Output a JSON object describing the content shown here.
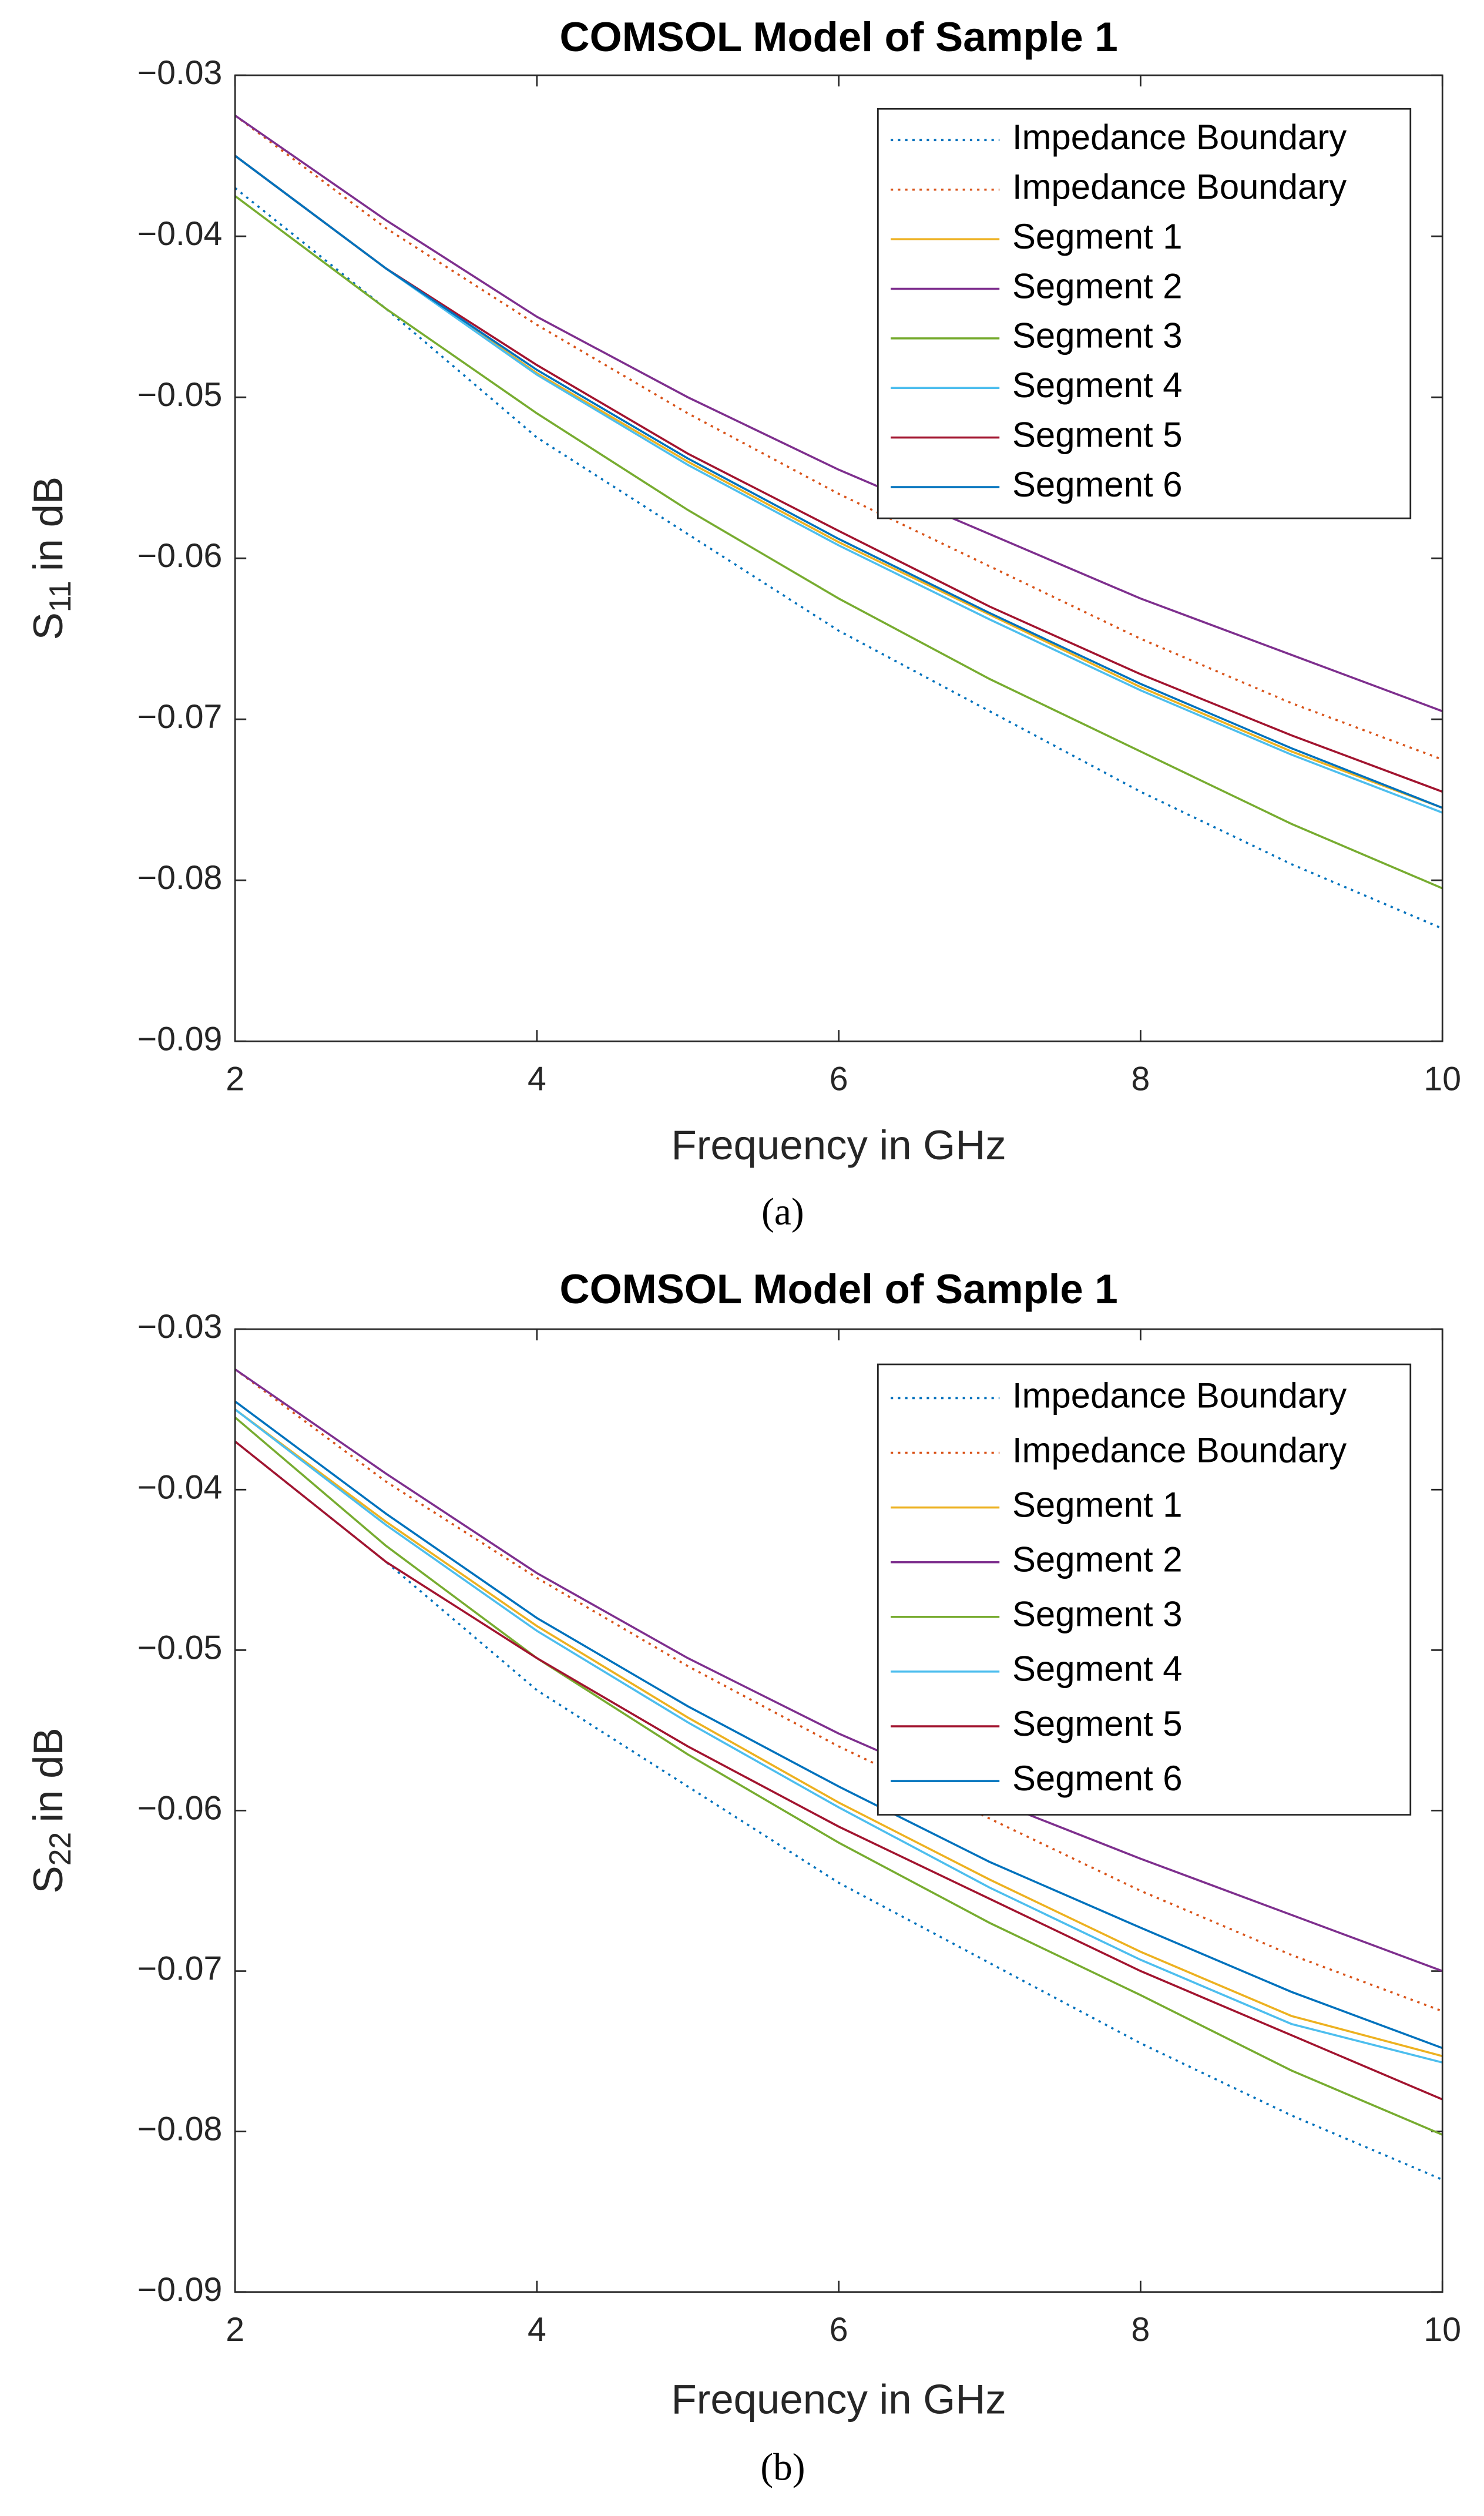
{
  "chart_data": [
    {
      "type": "line",
      "title": "COMSOL Model of Sample 1",
      "xlabel": "Frequency in GHz",
      "ylabel": [
        "S",
        "11",
        "in dB"
      ],
      "caption": "(a)",
      "xlim": [
        2,
        10
      ],
      "xticks": [
        2,
        4,
        6,
        8,
        10
      ],
      "ylim": [
        -0.09,
        -0.03
      ],
      "yticks": [
        {
          "value": -0.09,
          "label": "−0.09"
        },
        {
          "value": -0.08,
          "label": "−0.08"
        },
        {
          "value": -0.07,
          "label": "−0.07"
        },
        {
          "value": -0.06,
          "label": "−0.06"
        },
        {
          "value": -0.05,
          "label": "−0.05"
        },
        {
          "value": -0.04,
          "label": "−0.04"
        },
        {
          "value": -0.03,
          "label": "−0.03"
        }
      ],
      "legend": "northeast",
      "x": [
        2,
        3,
        4,
        5,
        6,
        7,
        8,
        9,
        10
      ],
      "series": [
        {
          "name": "Impedance Boundary",
          "color": "#0072BD",
          "style": "dotted",
          "values": [
            -0.037,
            -0.0445,
            -0.0525,
            -0.0585,
            -0.0645,
            -0.0695,
            -0.0745,
            -0.079,
            -0.083
          ]
        },
        {
          "name": "Impedance Boundary",
          "color": "#D95319",
          "style": "dotted",
          "values": [
            -0.0325,
            -0.0395,
            -0.0455,
            -0.051,
            -0.056,
            -0.0605,
            -0.065,
            -0.069,
            -0.0725
          ]
        },
        {
          "name": "Segment 1",
          "color": "#EDB120",
          "style": "solid",
          "values": [
            -0.035,
            -0.042,
            -0.0485,
            -0.054,
            -0.059,
            -0.0635,
            -0.068,
            -0.072,
            -0.0755
          ]
        },
        {
          "name": "Segment 2",
          "color": "#7E2F8E",
          "style": "solid",
          "values": [
            -0.0325,
            -0.039,
            -0.045,
            -0.05,
            -0.0545,
            -0.0585,
            -0.0625,
            -0.066,
            -0.0695
          ]
        },
        {
          "name": "Segment 3",
          "color": "#77AC30",
          "style": "solid",
          "values": [
            -0.0375,
            -0.0445,
            -0.051,
            -0.057,
            -0.0625,
            -0.0675,
            -0.072,
            -0.0765,
            -0.0805
          ]
        },
        {
          "name": "Segment 4",
          "color": "#4DBEEE",
          "style": "solid",
          "values": [
            -0.035,
            -0.042,
            -0.0486,
            -0.0542,
            -0.0592,
            -0.0638,
            -0.0682,
            -0.0722,
            -0.0758
          ]
        },
        {
          "name": "Segment 5",
          "color": "#A2142F",
          "style": "solid",
          "values": [
            -0.035,
            -0.042,
            -0.048,
            -0.0535,
            -0.0583,
            -0.063,
            -0.0672,
            -0.071,
            -0.0745
          ]
        },
        {
          "name": "Segment 6",
          "color": "#0072BD",
          "style": "solid",
          "values": [
            -0.035,
            -0.042,
            -0.0483,
            -0.0538,
            -0.0588,
            -0.0634,
            -0.0678,
            -0.0718,
            -0.0755
          ]
        }
      ]
    },
    {
      "type": "line",
      "title": "COMSOL Model of Sample 1",
      "xlabel": "Frequency in GHz",
      "ylabel": [
        "S",
        "22",
        "in dB"
      ],
      "caption": "(b)",
      "xlim": [
        2,
        10
      ],
      "xticks": [
        2,
        4,
        6,
        8,
        10
      ],
      "ylim": [
        -0.09,
        -0.03
      ],
      "yticks": [
        {
          "value": -0.09,
          "label": "−0.09"
        },
        {
          "value": -0.08,
          "label": "−0.08"
        },
        {
          "value": -0.07,
          "label": "−0.07"
        },
        {
          "value": -0.06,
          "label": "−0.06"
        },
        {
          "value": -0.05,
          "label": "−0.05"
        },
        {
          "value": -0.04,
          "label": "−0.04"
        },
        {
          "value": -0.03,
          "label": "−0.03"
        }
      ],
      "legend": "northeast",
      "x": [
        2,
        3,
        4,
        5,
        6,
        7,
        8,
        9,
        10
      ],
      "series": [
        {
          "name": "Impedance Boundary",
          "color": "#0072BD",
          "style": "dotted",
          "values": [
            -0.037,
            -0.0445,
            -0.0525,
            -0.0585,
            -0.0645,
            -0.0695,
            -0.0745,
            -0.079,
            -0.083
          ]
        },
        {
          "name": "Impedance Boundary",
          "color": "#D95319",
          "style": "dotted",
          "values": [
            -0.0325,
            -0.0395,
            -0.0455,
            -0.051,
            -0.056,
            -0.0605,
            -0.065,
            -0.069,
            -0.0725
          ]
        },
        {
          "name": "Segment 1",
          "color": "#EDB120",
          "style": "solid",
          "values": [
            -0.035,
            -0.042,
            -0.0485,
            -0.0542,
            -0.0595,
            -0.0643,
            -0.0688,
            -0.0728,
            -0.0753
          ]
        },
        {
          "name": "Segment 2",
          "color": "#7E2F8E",
          "style": "solid",
          "values": [
            -0.0325,
            -0.039,
            -0.0452,
            -0.0505,
            -0.0552,
            -0.0593,
            -0.063,
            -0.0665,
            -0.07
          ]
        },
        {
          "name": "Segment 3",
          "color": "#77AC30",
          "style": "solid",
          "values": [
            -0.0355,
            -0.0435,
            -0.0505,
            -0.0565,
            -0.062,
            -0.067,
            -0.0715,
            -0.0762,
            -0.0802
          ]
        },
        {
          "name": "Segment 4",
          "color": "#4DBEEE",
          "style": "solid",
          "values": [
            -0.035,
            -0.0422,
            -0.0488,
            -0.0545,
            -0.0598,
            -0.0648,
            -0.0693,
            -0.0733,
            -0.0757
          ]
        },
        {
          "name": "Segment 5",
          "color": "#A2142F",
          "style": "solid",
          "values": [
            -0.037,
            -0.0445,
            -0.0505,
            -0.056,
            -0.061,
            -0.0655,
            -0.07,
            -0.074,
            -0.078
          ]
        },
        {
          "name": "Segment 6",
          "color": "#0072BD",
          "style": "solid",
          "values": [
            -0.0345,
            -0.0415,
            -0.048,
            -0.0535,
            -0.0585,
            -0.0632,
            -0.0673,
            -0.0713,
            -0.0748
          ]
        }
      ]
    }
  ]
}
